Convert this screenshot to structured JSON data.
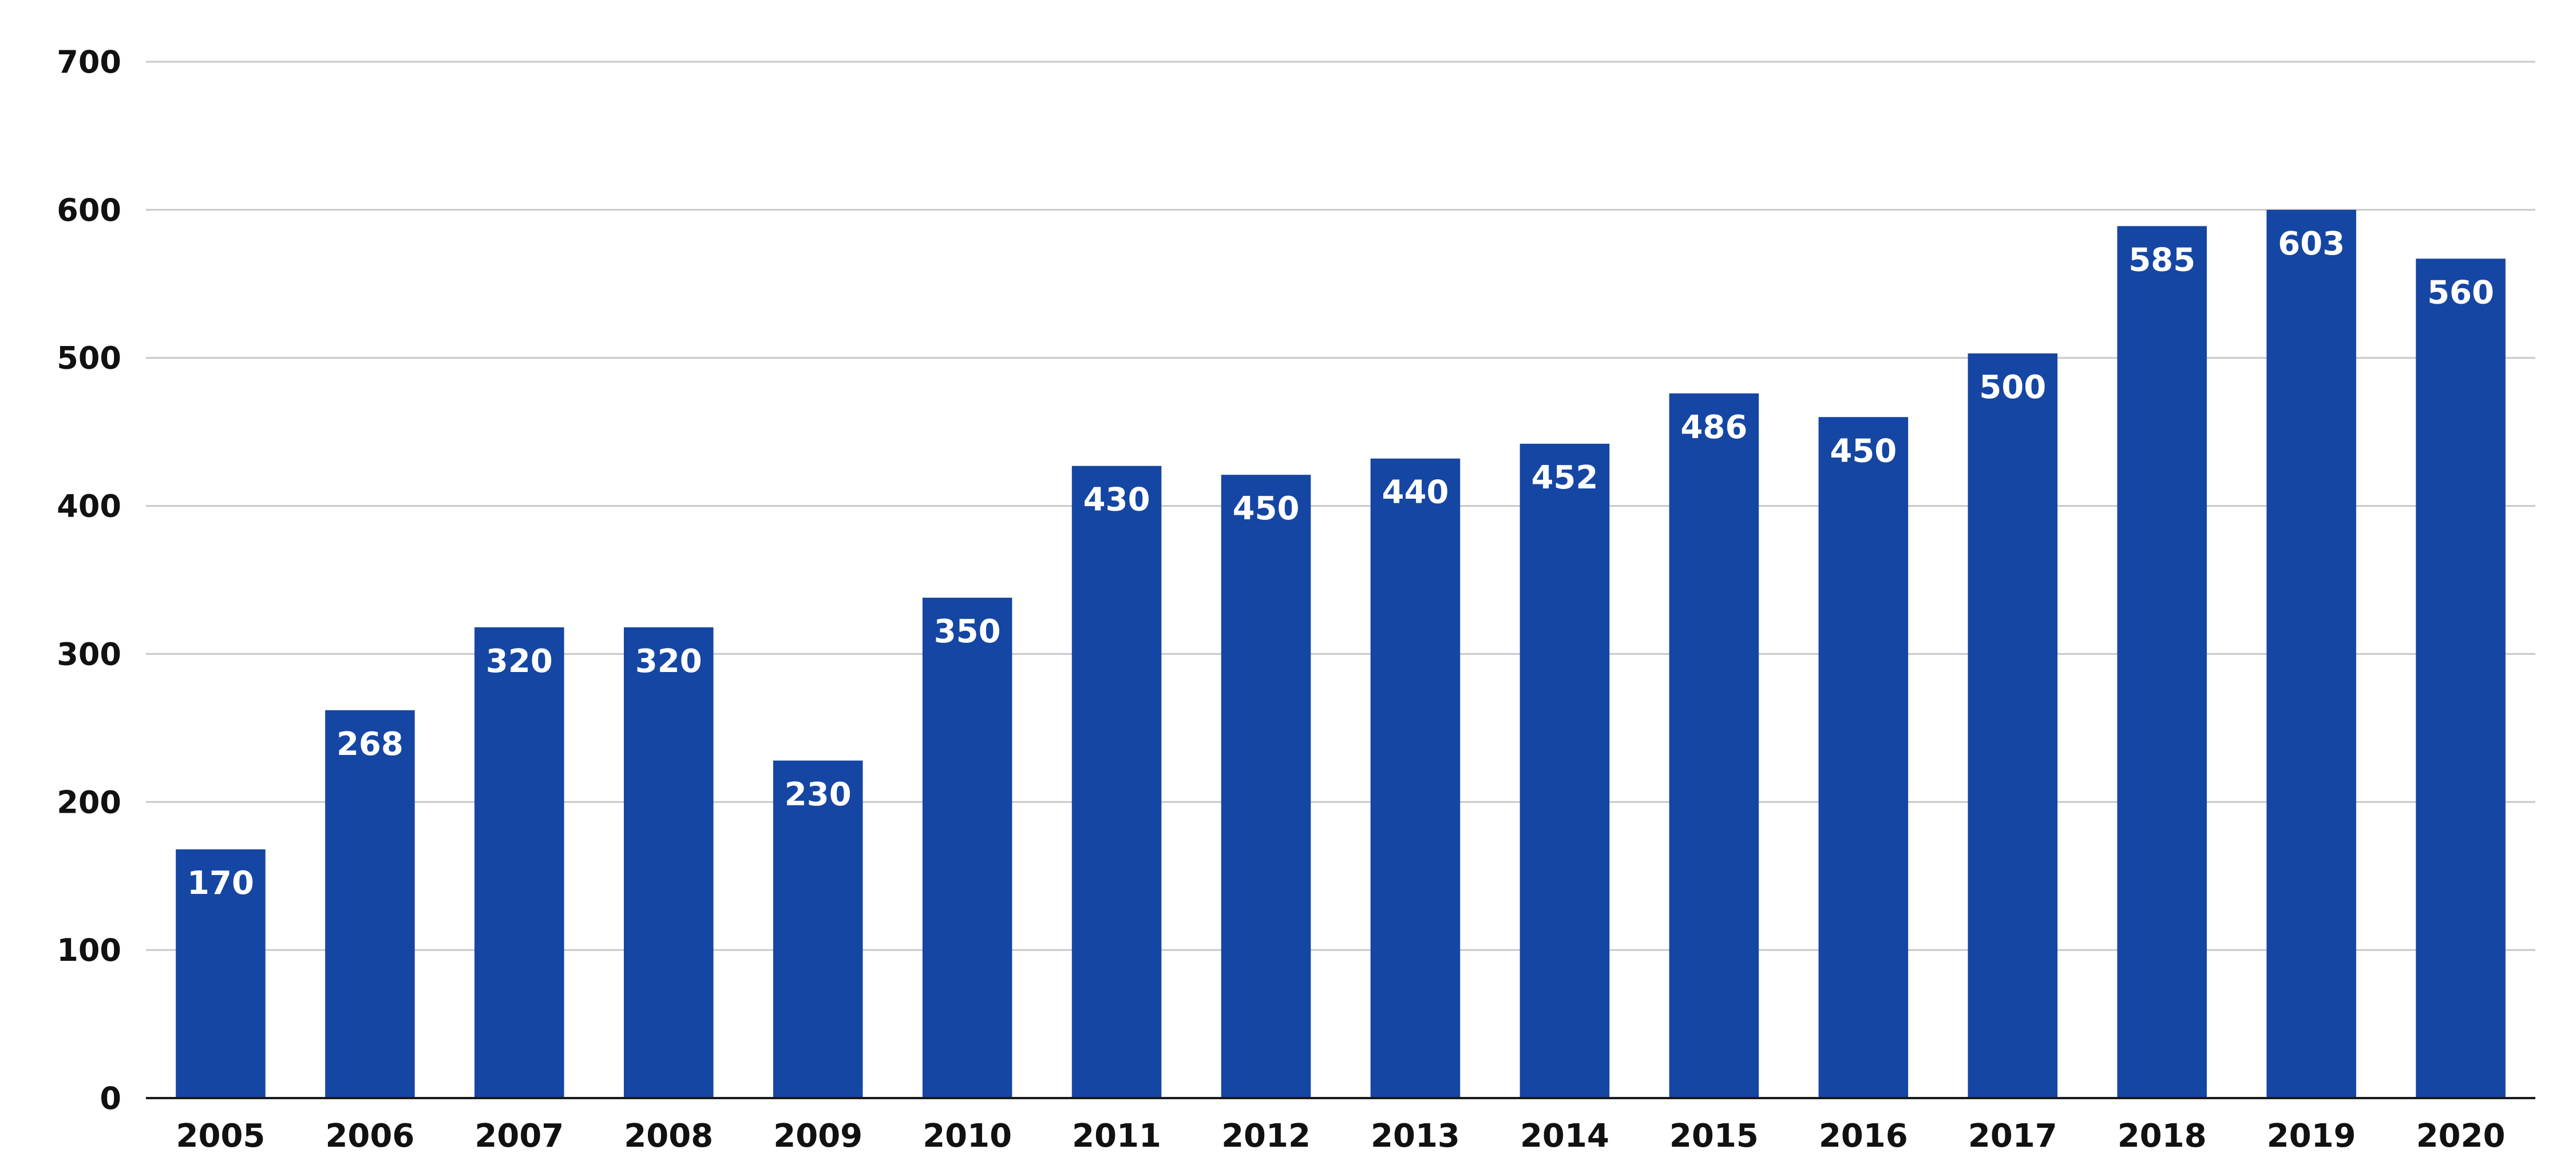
{
  "chart_data": {
    "type": "bar",
    "title": "",
    "xlabel": "",
    "ylabel": "",
    "categories": [
      "2005",
      "2006",
      "2007",
      "2008",
      "2009",
      "2010",
      "2011",
      "2012",
      "2013",
      "2014",
      "2015",
      "2016",
      "2017",
      "2018",
      "2019",
      "2020"
    ],
    "values": [
      170,
      268,
      320,
      320,
      230,
      350,
      430,
      450,
      440,
      452,
      486,
      450,
      500,
      585,
      603,
      560
    ],
    "bar_heights": [
      168,
      262,
      318,
      318,
      228,
      338,
      427,
      421,
      432,
      442,
      476,
      460,
      503,
      589,
      600,
      567
    ],
    "ylim": [
      0,
      700
    ],
    "y_ticks": [
      0,
      100,
      200,
      300,
      400,
      500,
      600,
      700
    ],
    "grid": true,
    "legend": "none",
    "colors": {
      "bar": "#1546a3",
      "bar_label": "#ffffff",
      "grid": "#c8c8c8",
      "text": "#111111"
    }
  }
}
